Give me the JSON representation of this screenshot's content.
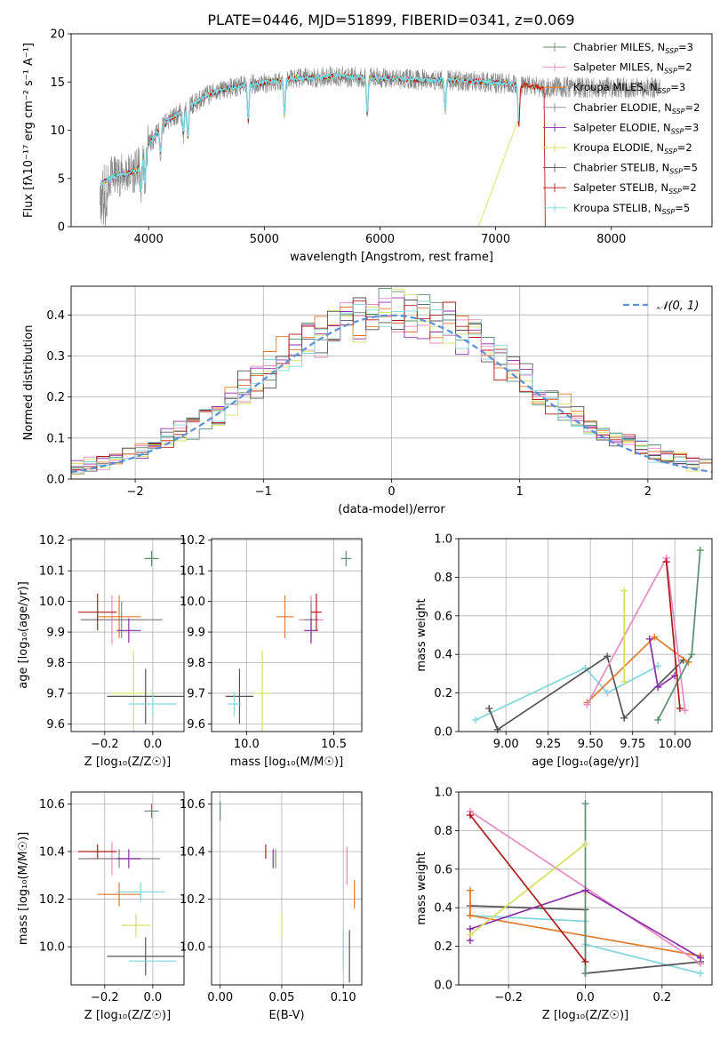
{
  "title": "PLATE=0446, MJD=51899, FIBERID=0341, z=0.069",
  "colors": {
    "Chabrier MILES": "#5b8f6e",
    "Salpeter MILES": "#e68ac3",
    "Kroupa MILES": "#e07b2a",
    "Chabrier ELODIE": "#888888",
    "Salpeter ELODIE": "#8c2fa8",
    "Kroupa ELODIE": "#d6e05c",
    "Chabrier STELIB": "#555555",
    "Salpeter STELIB": "#b01a1a",
    "Kroupa STELIB": "#7fd6de",
    "gauss": "#5b8fd6",
    "grid": "#b0b0b0"
  },
  "chart_data": [
    {
      "id": "spectrum",
      "type": "line",
      "title": "PLATE=0446, MJD=51899, FIBERID=0341, z=0.069",
      "xlabel": "wavelength [Angstrom, rest frame]",
      "ylabel": "Flux [fλ10⁻¹⁷ erg cm⁻² s⁻¹ A⁻¹]",
      "xlim": [
        3330,
        8870
      ],
      "ylim": [
        0,
        20
      ],
      "xticks": [
        4000,
        5000,
        6000,
        7000,
        8000
      ],
      "yticks": [
        0,
        5,
        10,
        15,
        20
      ],
      "grid": false,
      "legend": "top-right",
      "continuum": {
        "x": [
          3600,
          3700,
          3800,
          3900,
          4000,
          4100,
          4200,
          4300,
          4400,
          4500,
          4600,
          4800,
          5000,
          5200,
          5400,
          5600,
          5800,
          6000,
          6200,
          6400,
          6600,
          6800,
          7000,
          7200,
          7400
        ],
        "y": [
          4.5,
          5.2,
          5.5,
          5.8,
          8.5,
          10.2,
          11.3,
          12.0,
          12.8,
          13.6,
          14.1,
          14.6,
          14.9,
          15.3,
          15.4,
          15.6,
          15.5,
          15.4,
          15.3,
          15.2,
          15.2,
          15.1,
          14.9,
          14.7,
          14.4
        ]
      },
      "series": [
        {
          "name": "Chabrier MILES, N_SSP=3",
          "label_name": "Chabrier MILES",
          "nssp": "N",
          "sub": "SSP",
          "num": "=3",
          "ckey": "Chabrier MILES"
        },
        {
          "name": "Salpeter MILES, N_SSP=2",
          "label_name": "Salpeter MILES",
          "nssp": "N",
          "sub": "SSP",
          "num": "=2",
          "ckey": "Salpeter MILES"
        },
        {
          "name": "Kroupa MILES, N_SSP=3",
          "label_name": "Kroupa MILES",
          "nssp": "N",
          "sub": "SSP",
          "num": "=3",
          "ckey": "Kroupa MILES"
        },
        {
          "name": "Chabrier ELODIE, N_SSP=2",
          "label_name": "Chabrier ELODIE",
          "nssp": "N",
          "sub": "SSP",
          "num": "=2",
          "ckey": "Chabrier ELODIE"
        },
        {
          "name": "Salpeter ELODIE, N_SSP=3",
          "label_name": "Salpeter ELODIE",
          "nssp": "N",
          "sub": "SSP",
          "num": "=3",
          "ckey": "Salpeter ELODIE"
        },
        {
          "name": "Kroupa ELODIE, N_SSP=2",
          "label_name": "Kroupa ELODIE",
          "nssp": "N",
          "sub": "SSP",
          "num": "=2",
          "ckey": "Kroupa ELODIE"
        },
        {
          "name": "Chabrier STELIB, N_SSP=5",
          "label_name": "Chabrier STELIB",
          "nssp": "N",
          "sub": "SSP",
          "num": "=5",
          "ckey": "Chabrier STELIB"
        },
        {
          "name": "Salpeter STELIB, N_SSP=2",
          "label_name": "Salpeter STELIB",
          "nssp": "N",
          "sub": "SSP",
          "num": "=2",
          "ckey": "Salpeter STELIB"
        },
        {
          "name": "Kroupa STELIB, N_SSP=5",
          "label_name": "Kroupa STELIB",
          "nssp": "N",
          "sub": "SSP",
          "num": "=5",
          "ckey": "Kroupa STELIB"
        }
      ]
    },
    {
      "id": "residuals",
      "type": "line",
      "xlabel": "(data-model)/error",
      "ylabel": "Normed distribution",
      "xlim": [
        -2.5,
        2.5
      ],
      "ylim": [
        0,
        0.47
      ],
      "xticks": [
        -2,
        -1,
        0,
        1,
        2
      ],
      "yticks": [
        0.0,
        0.1,
        0.2,
        0.3,
        0.4
      ],
      "grid": true,
      "legend": "top-right",
      "legend_label": "𝒩(0, 1)",
      "bin_width": 0.1,
      "bin_start": -2.5
    },
    {
      "id": "age_vs_Z",
      "type": "scatter",
      "xlabel": "Z [log₁₀(Z/Z☉)]",
      "ylabel": "age  [log₁₀(age/yr)]",
      "xlim": [
        -0.34,
        0.13
      ],
      "ylim": [
        9.575,
        10.205
      ],
      "xticks": [
        -0.2,
        0.0
      ],
      "yticks": [
        9.6,
        9.7,
        9.8,
        9.9,
        10.0,
        10.1,
        10.2
      ],
      "grid": true,
      "points": [
        {
          "ckey": "Chabrier MILES",
          "x": -0.005,
          "xerr": 0.03,
          "y": 10.14,
          "yerr": 0.025
        },
        {
          "ckey": "Salpeter MILES",
          "x": -0.17,
          "xerr": 0.12,
          "y": 9.94,
          "yerr": 0.08
        },
        {
          "ckey": "Kroupa MILES",
          "x": -0.14,
          "xerr": 0.09,
          "y": 9.95,
          "yerr": 0.07
        },
        {
          "ckey": "Chabrier ELODIE",
          "x": -0.13,
          "xerr": 0.17,
          "y": 9.94,
          "yerr": 0.06
        },
        {
          "ckey": "Salpeter ELODIE",
          "x": -0.1,
          "xerr": 0.05,
          "y": 9.905,
          "yerr": 0.04
        },
        {
          "ckey": "Kroupa ELODIE",
          "x": -0.08,
          "xerr": 0.09,
          "y": 9.7,
          "yerr": 0.14
        },
        {
          "ckey": "Chabrier STELIB",
          "x": -0.03,
          "xerr": 0.16,
          "y": 9.69,
          "yerr": 0.09
        },
        {
          "ckey": "Salpeter STELIB",
          "x": -0.23,
          "xerr": 0.08,
          "y": 9.965,
          "yerr": 0.06
        },
        {
          "ckey": "Kroupa STELIB",
          "x": 0.0,
          "xerr": 0.1,
          "y": 9.665,
          "yerr": 0.04
        }
      ]
    },
    {
      "id": "age_vs_mass",
      "type": "scatter",
      "xlabel": "mass [log₁₀(M/M☉)]",
      "ylabel": "",
      "xlim": [
        9.8,
        10.66
      ],
      "ylim": [
        9.575,
        10.205
      ],
      "xticks": [
        10.0,
        10.5
      ],
      "yticks": [
        9.6,
        9.7,
        9.8,
        9.9,
        10.0,
        10.1,
        10.2
      ],
      "grid": true,
      "points": [
        {
          "ckey": "Chabrier MILES",
          "x": 10.57,
          "xerr": 0.03,
          "y": 10.14,
          "yerr": 0.025
        },
        {
          "ckey": "Salpeter MILES",
          "x": 10.37,
          "xerr": 0.07,
          "y": 9.94,
          "yerr": 0.08
        },
        {
          "ckey": "Kroupa MILES",
          "x": 10.22,
          "xerr": 0.05,
          "y": 9.95,
          "yerr": 0.07
        },
        {
          "ckey": "Chabrier ELODIE",
          "x": 10.37,
          "xerr": 0.04,
          "y": 9.94,
          "yerr": 0.06
        },
        {
          "ckey": "Salpeter ELODIE",
          "x": 10.37,
          "xerr": 0.04,
          "y": 9.905,
          "yerr": 0.04
        },
        {
          "ckey": "Kroupa ELODIE",
          "x": 10.09,
          "xerr": 0.05,
          "y": 9.7,
          "yerr": 0.14
        },
        {
          "ckey": "Chabrier STELIB",
          "x": 9.96,
          "xerr": 0.08,
          "y": 9.69,
          "yerr": 0.09
        },
        {
          "ckey": "Salpeter STELIB",
          "x": 10.4,
          "xerr": 0.03,
          "y": 9.965,
          "yerr": 0.06
        },
        {
          "ckey": "Kroupa STELIB",
          "x": 9.93,
          "xerr": 0.04,
          "y": 9.665,
          "yerr": 0.04
        }
      ]
    },
    {
      "id": "weight_vs_age",
      "type": "line",
      "xlabel": "age  [log₁₀(age/yr)]",
      "ylabel": "mass weight",
      "xlim": [
        8.72,
        10.22
      ],
      "ylim": [
        0,
        1.0
      ],
      "xticks": [
        9.0,
        9.25,
        9.5,
        9.75,
        10.0
      ],
      "yticks": [
        0.0,
        0.2,
        0.4,
        0.6,
        0.8,
        1.0
      ],
      "grid": true,
      "series": [
        {
          "ckey": "Kroupa STELIB",
          "x": [
            8.82,
            9.47,
            9.6,
            9.9
          ],
          "y": [
            0.06,
            0.33,
            0.2,
            0.34
          ]
        },
        {
          "ckey": "Chabrier STELIB",
          "x": [
            8.9,
            8.95,
            9.6,
            9.7,
            10.05
          ],
          "y": [
            0.12,
            0.01,
            0.39,
            0.07,
            0.37
          ]
        },
        {
          "ckey": "Kroupa MILES",
          "x": [
            9.48,
            9.88,
            10.08
          ],
          "y": [
            0.15,
            0.49,
            0.36
          ]
        },
        {
          "ckey": "Salpeter MILES",
          "x": [
            9.48,
            9.95,
            10.06
          ],
          "y": [
            0.14,
            0.9,
            0.11
          ]
        },
        {
          "ckey": "Chabrier MILES",
          "x": [
            9.9,
            10.1,
            10.15
          ],
          "y": [
            0.06,
            0.4,
            0.94
          ]
        },
        {
          "ckey": "Salpeter ELODIE",
          "x": [
            9.85,
            9.9,
            10.0
          ],
          "y": [
            0.48,
            0.23,
            0.29
          ]
        },
        {
          "ckey": "Kroupa ELODIE",
          "x": [
            9.7,
            9.7
          ],
          "y": [
            0.26,
            0.73
          ]
        },
        {
          "ckey": "Salpeter STELIB",
          "x": [
            9.95,
            10.03
          ],
          "y": [
            0.88,
            0.12
          ]
        }
      ]
    },
    {
      "id": "mass_vs_Z",
      "type": "scatter",
      "xlabel": "Z [log₁₀(Z/Z☉)]",
      "ylabel": "mass [log₁₀(M/M☉)]",
      "xlim": [
        -0.34,
        0.13
      ],
      "ylim": [
        9.84,
        10.65
      ],
      "xticks": [
        -0.2,
        0.0
      ],
      "yticks": [
        10.0,
        10.2,
        10.4,
        10.6
      ],
      "grid": true,
      "points": [
        {
          "ckey": "Chabrier MILES",
          "x": -0.005,
          "xerr": 0.03,
          "y": 10.57,
          "yerr": 0.03
        },
        {
          "ckey": "Salpeter MILES",
          "x": -0.17,
          "xerr": 0.12,
          "y": 10.37,
          "yerr": 0.07
        },
        {
          "ckey": "Kroupa MILES",
          "x": -0.14,
          "xerr": 0.09,
          "y": 10.22,
          "yerr": 0.05
        },
        {
          "ckey": "Chabrier ELODIE",
          "x": -0.14,
          "xerr": 0.17,
          "y": 10.37,
          "yerr": 0.04
        },
        {
          "ckey": "Salpeter ELODIE",
          "x": -0.1,
          "xerr": 0.05,
          "y": 10.37,
          "yerr": 0.04
        },
        {
          "ckey": "Kroupa ELODIE",
          "x": -0.07,
          "xerr": 0.06,
          "y": 10.09,
          "yerr": 0.05
        },
        {
          "ckey": "Chabrier STELIB",
          "x": -0.03,
          "xerr": 0.16,
          "y": 9.96,
          "yerr": 0.08
        },
        {
          "ckey": "Salpeter STELIB",
          "x": -0.23,
          "xerr": 0.08,
          "y": 10.4,
          "yerr": 0.03
        },
        {
          "ckey": "Kroupa STELIB",
          "x": -0.05,
          "xerr": 0.1,
          "y": 10.23,
          "yerr": 0.04
        },
        {
          "ckey": "Kroupa STELIB",
          "x": 0.0,
          "xerr": 0.1,
          "y": 9.94,
          "yerr": 0.0
        }
      ]
    },
    {
      "id": "mass_vs_ebv",
      "type": "scatter",
      "xlabel": "E(B-V)",
      "ylabel": "",
      "xlim": [
        -0.007,
        0.115
      ],
      "ylim": [
        9.84,
        10.65
      ],
      "xticks": [
        0.0,
        0.05,
        0.1
      ],
      "yticks": [
        10.0,
        10.2,
        10.4,
        10.6
      ],
      "grid": true,
      "points": [
        {
          "ckey": "Chabrier MILES",
          "x": 0.0,
          "xerr": 0,
          "y": 10.57,
          "yerr": 0.04
        },
        {
          "ckey": "Salpeter MILES",
          "x": 0.103,
          "xerr": 0,
          "y": 10.34,
          "yerr": 0.08
        },
        {
          "ckey": "Kroupa MILES",
          "x": 0.109,
          "xerr": 0,
          "y": 10.22,
          "yerr": 0.06
        },
        {
          "ckey": "Chabrier ELODIE",
          "x": 0.045,
          "xerr": 0,
          "y": 10.37,
          "yerr": 0.04
        },
        {
          "ckey": "Salpeter ELODIE",
          "x": 0.043,
          "xerr": 0,
          "y": 10.37,
          "yerr": 0.04
        },
        {
          "ckey": "Kroupa ELODIE",
          "x": 0.05,
          "xerr": 0,
          "y": 10.09,
          "yerr": 0.05
        },
        {
          "ckey": "Chabrier STELIB",
          "x": 0.105,
          "xerr": 0,
          "y": 9.96,
          "yerr": 0.11
        },
        {
          "ckey": "Salpeter STELIB",
          "x": 0.037,
          "xerr": 0,
          "y": 10.4,
          "yerr": 0.03
        },
        {
          "ckey": "Kroupa STELIB",
          "x": 0.1,
          "xerr": 0,
          "y": 9.99,
          "yerr": 0.08
        }
      ]
    },
    {
      "id": "weight_vs_Z",
      "type": "line",
      "xlabel": "Z [log₁₀(Z/Z☉)]",
      "ylabel": "mass weight",
      "xlim": [
        -0.33,
        0.33
      ],
      "ylim": [
        0,
        1.0
      ],
      "xticks": [
        -0.2,
        0.0,
        0.2
      ],
      "yticks": [
        0.0,
        0.2,
        0.4,
        0.6,
        0.8,
        1.0
      ],
      "grid": true,
      "series": [
        {
          "ckey": "Kroupa STELIB",
          "x": [
            -0.3,
            0.0,
            0.0,
            0.3
          ],
          "y": [
            0.36,
            0.33,
            0.21,
            0.06
          ]
        },
        {
          "ckey": "Chabrier STELIB",
          "x": [
            -0.3,
            0.0,
            0.0,
            0.3
          ],
          "y": [
            0.41,
            0.39,
            0.06,
            0.12
          ]
        },
        {
          "ckey": "Kroupa MILES",
          "x": [
            -0.3,
            -0.3,
            0.3
          ],
          "y": [
            0.49,
            0.36,
            0.15
          ]
        },
        {
          "ckey": "Salpeter MILES",
          "x": [
            -0.3,
            0.3
          ],
          "y": [
            0.9,
            0.11
          ]
        },
        {
          "ckey": "Chabrier MILES",
          "x": [
            0.0,
            0.0
          ],
          "y": [
            0.06,
            0.94
          ]
        },
        {
          "ckey": "Salpeter ELODIE",
          "x": [
            -0.3,
            -0.3,
            0.0,
            0.3
          ],
          "y": [
            0.23,
            0.29,
            0.49,
            0.14
          ]
        },
        {
          "ckey": "Kroupa ELODIE",
          "x": [
            -0.3,
            0.0
          ],
          "y": [
            0.26,
            0.73
          ]
        },
        {
          "ckey": "Salpeter STELIB",
          "x": [
            -0.3,
            0.0
          ],
          "y": [
            0.88,
            0.12
          ]
        }
      ]
    }
  ]
}
